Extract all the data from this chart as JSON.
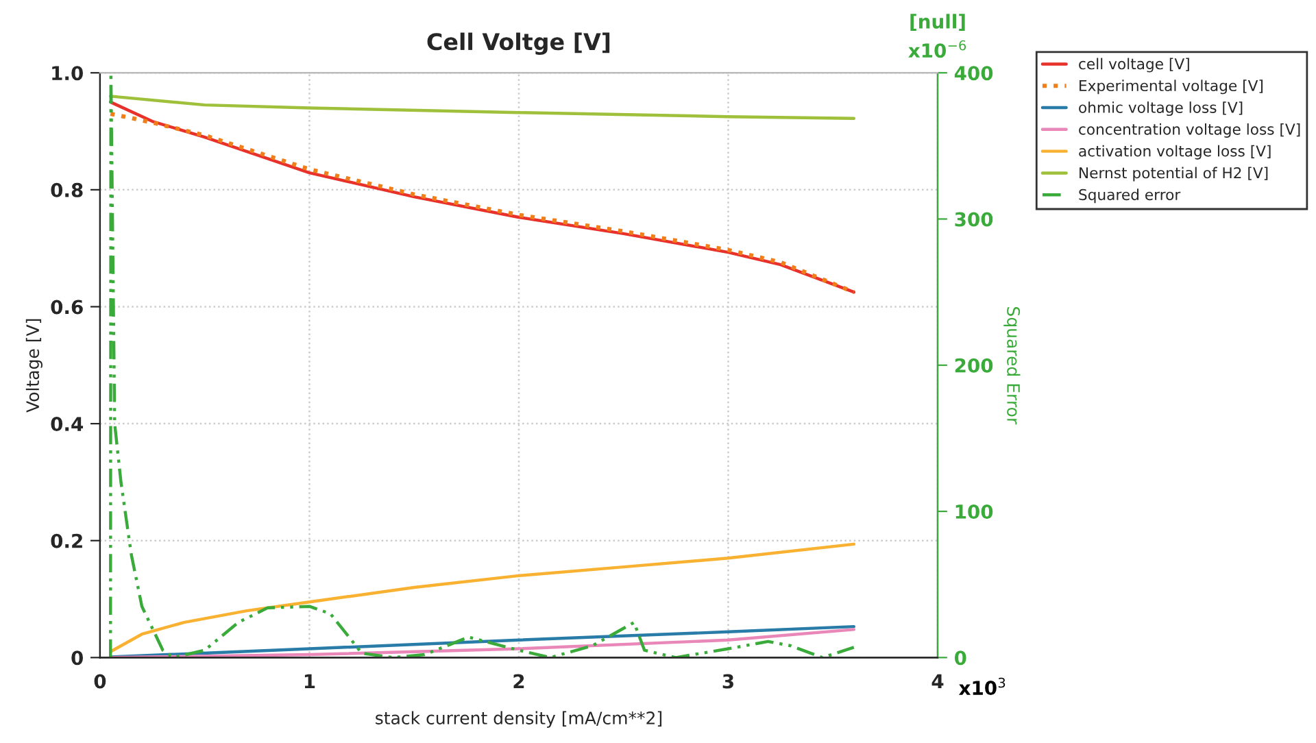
{
  "chart_data": {
    "type": "line",
    "title": "Cell Voltge [V]",
    "xlabel": "stack current density [mA/cm**2]",
    "ylabel": "Voltage [V]",
    "y2label": "Squared Error",
    "xlim": [
      0,
      4
    ],
    "xticks": [
      0,
      1,
      2,
      3,
      4
    ],
    "ylim": [
      0,
      1.0
    ],
    "yticks": [
      0,
      {
        "value": 0.2,
        "label": "0.2"
      },
      {
        "value": 0.4,
        "label": "0.4"
      },
      {
        "value": 0.6,
        "label": "0.6"
      },
      {
        "value": 0.8,
        "label": "0.8"
      },
      {
        "value": 1.0,
        "label": "1.0"
      }
    ],
    "y2lim": [
      0,
      400
    ],
    "y2ticks": [
      0,
      100,
      200,
      300,
      400
    ],
    "grid": true,
    "legend": "top right",
    "marker": "none",
    "annotations": [
      "x10$^{3}$",
      "[null]",
      "x10$^{−6}$"
    ],
    "series": [
      {
        "name": "cell voltage [V]",
        "color": "#e8312a",
        "line_style": "solid",
        "x": [
          0.05,
          0.25,
          0.5,
          1,
          1.5,
          2,
          2.5,
          3,
          3.25,
          3.6
        ],
        "values": [
          0.95,
          0.917,
          0.89,
          0.829,
          0.788,
          0.753,
          0.725,
          0.693,
          0.672,
          0.625
        ]
      },
      {
        "name": "Experimental voltage [V]",
        "color": "#f07f1a",
        "line_style": "dotted",
        "x": [
          0.05,
          0.25,
          0.5,
          1,
          1.5,
          2,
          2.5,
          3,
          3.25,
          3.6
        ],
        "values": [
          0.93,
          0.915,
          0.893,
          0.835,
          0.792,
          0.757,
          0.729,
          0.697,
          0.676,
          0.625
        ]
      },
      {
        "name": "ohmic voltage loss [V]",
        "color": "#2a7ca8",
        "line_style": "solid",
        "x": [
          0.05,
          1,
          2,
          3,
          3.6
        ],
        "values": [
          0.001,
          0.015,
          0.03,
          0.044,
          0.053
        ]
      },
      {
        "name": "concentration voltage loss [V]",
        "color": "#e887b8",
        "line_style": "solid",
        "x": [
          0.05,
          1,
          2,
          3,
          3.6
        ],
        "values": [
          0,
          0.005,
          0.015,
          0.03,
          0.048
        ]
      },
      {
        "name": "activation voltage loss [V]",
        "color": "#f9b132",
        "line_style": "solid",
        "x": [
          0.05,
          0.2,
          0.4,
          0.7,
          1,
          1.5,
          2,
          2.5,
          3,
          3.6
        ],
        "values": [
          0.01,
          0.04,
          0.06,
          0.08,
          0.095,
          0.12,
          0.14,
          0.155,
          0.17,
          0.194
        ]
      },
      {
        "name": "Nernst potential of H2 [V]",
        "color": "#9fc03a",
        "line_style": "solid",
        "x": [
          0.05,
          0.5,
          1,
          2,
          3,
          3.6
        ],
        "values": [
          0.96,
          0.945,
          0.94,
          0.932,
          0.925,
          0.922
        ]
      },
      {
        "name": "Squared error",
        "color": "#3aaa3a",
        "line_style": "dashdot",
        "axis": "y2",
        "x": [
          0.05,
          0.052,
          0.07,
          0.1,
          0.15,
          0.2,
          0.3,
          0.35,
          0.5,
          0.66,
          0.8,
          1.0,
          1.1,
          1.25,
          1.4,
          1.55,
          1.76,
          2.0,
          2.15,
          2.35,
          2.55,
          2.6,
          2.75,
          3.0,
          3.19,
          3.3,
          3.45,
          3.6
        ],
        "values": [
          0,
          400,
          160,
          120,
          70,
          35,
          5,
          0,
          5,
          24,
          34,
          35,
          30,
          3,
          0,
          2,
          14,
          5,
          0,
          8,
          24,
          5,
          0,
          6,
          11,
          8,
          0,
          7
        ]
      }
    ]
  }
}
